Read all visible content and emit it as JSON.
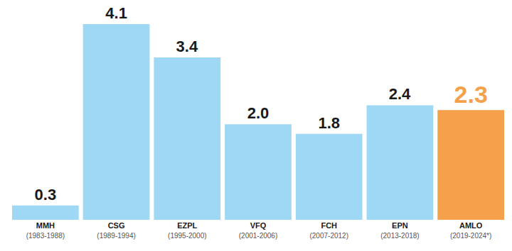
{
  "chart_data": {
    "type": "bar",
    "categories": [
      "MMH\n(1983-1988)",
      "CSG\n(1989-1994)",
      "EZPL\n(1995-2000)",
      "VFQ\n(2001-2006)",
      "FCH\n(2007-2012)",
      "EPN\n(2013-2018)",
      "AMLO\n(2019-2024*)"
    ],
    "values": [
      0.3,
      4.1,
      3.4,
      2.0,
      1.8,
      2.4,
      2.3
    ],
    "value_labels": [
      "0.3",
      "4.1",
      "3.4",
      "2.0",
      "1.8",
      "2.4",
      "2.3"
    ],
    "colors": [
      "#9ed8f5",
      "#9ed8f5",
      "#9ed8f5",
      "#9ed8f5",
      "#9ed8f5",
      "#9ed8f5",
      "#f5a04a"
    ],
    "ylim": [
      0,
      4.1
    ],
    "yticks": [
      0,
      4.1
    ],
    "grid": false,
    "data_labels": true,
    "tick_labels": "x"
  }
}
